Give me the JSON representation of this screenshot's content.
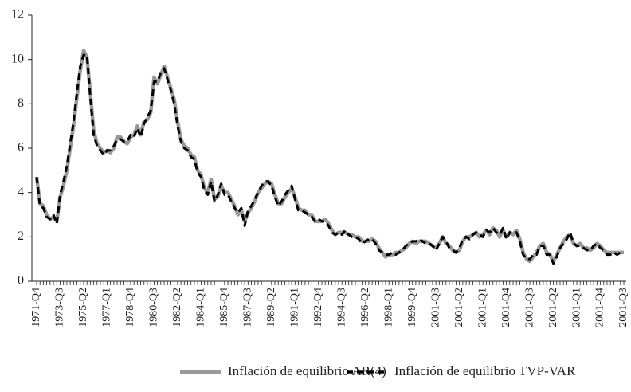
{
  "chart_data": {
    "type": "line",
    "categories": [
      "1971-Q4",
      null,
      null,
      null,
      null,
      null,
      null,
      "1973-Q3",
      null,
      null,
      null,
      null,
      null,
      null,
      "1975-Q2",
      null,
      null,
      null,
      null,
      null,
      null,
      "1977-Q1",
      null,
      null,
      null,
      null,
      null,
      null,
      "1978-Q4",
      null,
      null,
      null,
      null,
      null,
      null,
      "1980-Q3",
      null,
      null,
      null,
      null,
      null,
      null,
      "1982-Q2",
      null,
      null,
      null,
      null,
      null,
      null,
      "1984-Q1",
      null,
      null,
      null,
      null,
      null,
      null,
      "1985-Q4",
      null,
      null,
      null,
      null,
      null,
      null,
      "1987-Q3",
      null,
      null,
      null,
      null,
      null,
      null,
      "1989-Q2",
      null,
      null,
      null,
      null,
      null,
      null,
      "1991-Q1",
      null,
      null,
      null,
      null,
      null,
      null,
      "1992-Q4",
      null,
      null,
      null,
      null,
      null,
      null,
      "1994-Q3",
      null,
      null,
      null,
      null,
      null,
      null,
      "1996-Q2",
      null,
      null,
      null,
      null,
      null,
      null,
      "1998-Q1",
      null,
      null,
      null,
      null,
      null,
      null,
      "1999-Q4",
      null,
      null,
      null,
      null,
      null,
      null,
      "2001-Q3",
      null,
      null,
      null,
      null,
      null,
      null,
      "2001-Q2",
      null,
      null,
      null,
      null,
      null,
      null,
      "2001-Q1",
      null,
      null,
      null,
      null,
      null,
      null,
      "2001-Q4",
      null,
      null,
      null,
      null,
      null,
      null,
      "2001-Q3",
      null,
      null,
      null,
      null,
      null,
      null,
      "2001-Q2",
      null,
      null,
      null,
      null,
      null,
      null,
      "2001-Q1",
      null,
      null,
      null,
      null,
      null,
      null,
      "2001-Q4",
      null,
      null,
      null,
      null,
      null,
      null,
      "2001-Q3"
    ],
    "series": [
      {
        "name": "Inflación de equilibrio AR(4)",
        "color": "#999999",
        "dash": false,
        "values": [
          4.7,
          3.5,
          3.4,
          3.0,
          2.8,
          2.9,
          2.7,
          3.8,
          4.3,
          5.0,
          6.0,
          7.0,
          8.3,
          9.5,
          10.4,
          10.1,
          8.5,
          6.8,
          6.2,
          6.0,
          5.8,
          5.9,
          5.8,
          6.0,
          6.5,
          6.5,
          6.3,
          6.2,
          6.5,
          6.6,
          7.0,
          6.6,
          7.2,
          7.3,
          7.6,
          9.2,
          8.9,
          9.3,
          9.7,
          9.2,
          8.7,
          8.2,
          7.2,
          6.4,
          6.1,
          6.0,
          5.7,
          5.6,
          5.0,
          4.8,
          4.2,
          4.0,
          4.6,
          3.7,
          3.8,
          4.3,
          4.0,
          4.0,
          3.7,
          3.4,
          3.0,
          3.2,
          2.7,
          3.1,
          3.3,
          3.6,
          4.0,
          4.2,
          4.4,
          4.5,
          4.4,
          3.9,
          3.5,
          3.5,
          3.8,
          4.0,
          4.2,
          3.8,
          3.3,
          3.2,
          3.2,
          3.0,
          3.0,
          2.7,
          2.7,
          2.7,
          2.8,
          2.6,
          2.3,
          2.1,
          2.2,
          2.2,
          2.2,
          2.1,
          2.1,
          2.0,
          2.0,
          1.8,
          1.8,
          1.8,
          1.9,
          1.8,
          1.5,
          1.3,
          1.1,
          1.2,
          1.2,
          1.3,
          1.3,
          1.4,
          1.5,
          1.7,
          1.8,
          1.7,
          1.8,
          1.8,
          1.8,
          1.7,
          1.6,
          1.5,
          1.7,
          2.0,
          1.7,
          1.6,
          1.4,
          1.3,
          1.4,
          1.8,
          2.0,
          2.0,
          2.1,
          2.2,
          2.0,
          2.1,
          2.3,
          2.1,
          2.4,
          2.3,
          2.0,
          2.3,
          2.0,
          2.2,
          2.1,
          2.3,
          1.9,
          1.3,
          1.0,
          0.9,
          1.1,
          1.3,
          1.6,
          1.7,
          1.3,
          1.2,
          0.9,
          1.2,
          1.5,
          1.8,
          2.0,
          2.1,
          1.7,
          1.6,
          1.7,
          1.5,
          1.5,
          1.4,
          1.5,
          1.7,
          1.6,
          1.4,
          1.3,
          1.3,
          1.3,
          1.3,
          1.3,
          1.3
        ]
      },
      {
        "name": "Inflación de equilibrio TVP-VAR",
        "color": "#000000",
        "dash": true,
        "values": [
          4.7,
          3.4,
          3.3,
          2.9,
          2.8,
          3.0,
          2.6,
          3.9,
          4.5,
          5.2,
          6.2,
          7.2,
          8.5,
          9.7,
          10.2,
          10.2,
          8.3,
          6.6,
          6.1,
          5.9,
          5.7,
          5.9,
          5.9,
          6.1,
          6.4,
          6.4,
          6.3,
          6.3,
          6.6,
          6.5,
          6.9,
          6.5,
          7.1,
          7.4,
          7.7,
          9.0,
          9.0,
          9.4,
          9.6,
          9.1,
          8.6,
          8.0,
          7.0,
          6.3,
          6.0,
          5.9,
          5.6,
          5.5,
          4.9,
          4.7,
          4.1,
          3.9,
          4.5,
          3.6,
          3.9,
          4.4,
          3.9,
          3.9,
          3.6,
          3.3,
          3.1,
          3.3,
          2.5,
          3.2,
          3.4,
          3.7,
          4.0,
          4.3,
          4.5,
          4.5,
          4.3,
          3.8,
          3.4,
          3.6,
          3.9,
          4.1,
          4.3,
          3.7,
          3.2,
          3.2,
          3.1,
          3.0,
          2.9,
          2.7,
          2.8,
          2.7,
          2.7,
          2.5,
          2.2,
          2.1,
          2.2,
          2.1,
          2.3,
          2.1,
          2.0,
          2.0,
          1.9,
          1.7,
          1.8,
          1.9,
          1.9,
          1.7,
          1.4,
          1.3,
          1.2,
          1.2,
          1.3,
          1.2,
          1.3,
          1.4,
          1.6,
          1.7,
          1.8,
          1.8,
          1.9,
          1.8,
          1.7,
          1.7,
          1.6,
          1.4,
          1.7,
          2.0,
          1.8,
          1.5,
          1.4,
          1.3,
          1.5,
          1.9,
          2.0,
          1.9,
          2.1,
          2.2,
          2.1,
          2.0,
          2.3,
          2.2,
          2.4,
          2.2,
          2.1,
          2.4,
          1.9,
          2.2,
          2.2,
          2.2,
          1.8,
          1.2,
          1.0,
          1.0,
          1.2,
          1.2,
          1.6,
          1.6,
          1.2,
          1.2,
          0.8,
          1.1,
          1.5,
          1.7,
          1.9,
          2.2,
          1.7,
          1.6,
          1.6,
          1.5,
          1.4,
          1.4,
          1.6,
          1.7,
          1.5,
          1.4,
          1.2,
          1.2,
          1.3,
          1.2,
          1.3,
          1.3
        ]
      }
    ],
    "ylim": [
      0,
      12
    ],
    "yticks": [
      0,
      2,
      4,
      6,
      8,
      10,
      12
    ],
    "grid": false,
    "legend": "bottom"
  }
}
